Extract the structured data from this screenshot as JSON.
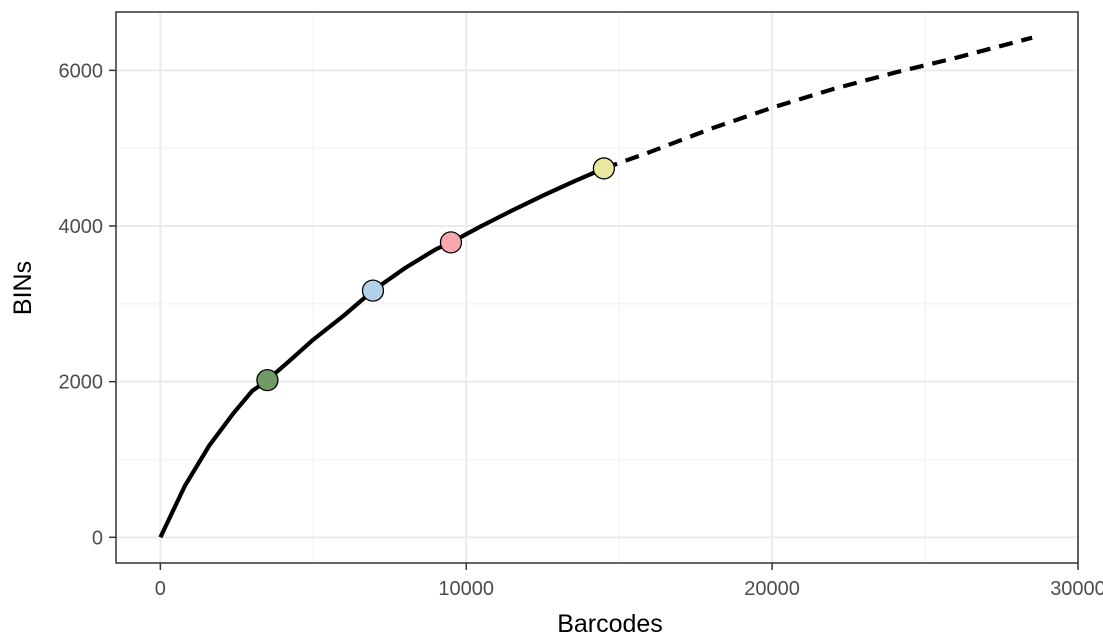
{
  "chart_data": {
    "type": "line",
    "title": "",
    "xlabel": "Barcodes",
    "ylabel": "BINs",
    "xlim": [
      -1450,
      30000
    ],
    "ylim": [
      -330,
      6750
    ],
    "x_ticks": [
      0,
      10000,
      20000,
      30000
    ],
    "y_ticks": [
      0,
      2000,
      4000,
      6000
    ],
    "x_tick_labels": [
      "0",
      "10000",
      "20000",
      "30000"
    ],
    "y_tick_labels": [
      "0",
      "2000",
      "4000",
      "6000"
    ],
    "grid": true,
    "legend": "none",
    "series": [
      {
        "style": "solid",
        "color": "#000000",
        "points": [
          [
            0,
            0
          ],
          [
            800,
            660
          ],
          [
            1600,
            1180
          ],
          [
            2400,
            1600
          ],
          [
            3000,
            1880
          ],
          [
            3500,
            2020
          ],
          [
            4200,
            2260
          ],
          [
            5000,
            2540
          ],
          [
            6000,
            2850
          ],
          [
            6950,
            3170
          ],
          [
            8000,
            3460
          ],
          [
            9000,
            3700
          ],
          [
            9500,
            3790
          ],
          [
            10500,
            4000
          ],
          [
            11500,
            4200
          ],
          [
            12500,
            4390
          ],
          [
            13500,
            4570
          ],
          [
            14500,
            4740
          ]
        ]
      },
      {
        "style": "dashed",
        "color": "#000000",
        "points": [
          [
            14500,
            4740
          ],
          [
            16000,
            4950
          ],
          [
            18000,
            5250
          ],
          [
            20000,
            5520
          ],
          [
            22000,
            5760
          ],
          [
            24000,
            5970
          ],
          [
            26000,
            6160
          ],
          [
            28500,
            6420
          ]
        ]
      }
    ],
    "markers": [
      {
        "x": 3500,
        "y": 2020,
        "color": "#6f9a66"
      },
      {
        "x": 6950,
        "y": 3170,
        "color": "#b3cfe9"
      },
      {
        "x": 9500,
        "y": 3790,
        "color": "#f8a8ad"
      },
      {
        "x": 14500,
        "y": 4740,
        "color": "#e8e8a0"
      }
    ]
  }
}
